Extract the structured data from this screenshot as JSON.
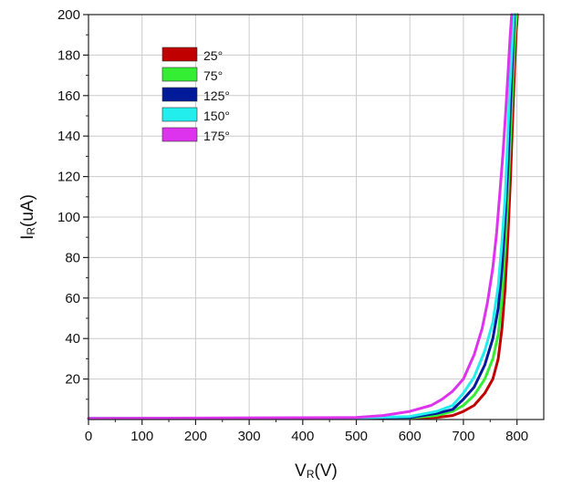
{
  "chart_data": {
    "type": "line",
    "title": "",
    "xlabel": {
      "main": "V",
      "sub": "R",
      "unit": "(V)"
    },
    "ylabel": {
      "main": "I",
      "sub": "R",
      "unit": "(uA)"
    },
    "xlim": [
      0,
      850
    ],
    "ylim": [
      0,
      200
    ],
    "xticks": [
      "0",
      "100",
      "200",
      "300",
      "400",
      "500",
      "600",
      "700",
      "800"
    ],
    "xtick_values": [
      0,
      100,
      200,
      300,
      400,
      500,
      600,
      700,
      800
    ],
    "yticks": [
      "20",
      "40",
      "60",
      "80",
      "100",
      "120",
      "140",
      "160",
      "180",
      "200"
    ],
    "ytick_values": [
      20,
      40,
      60,
      80,
      100,
      120,
      140,
      160,
      180,
      200
    ],
    "grid": true,
    "legend_position": "top-left",
    "series": [
      {
        "name": "25°",
        "color": "#c00000",
        "x": [
          0,
          500,
          600,
          650,
          680,
          700,
          720,
          740,
          755,
          765,
          772,
          778,
          783,
          788,
          792,
          795,
          798,
          801
        ],
        "y": [
          0.5,
          0.5,
          0.6,
          1,
          2,
          4,
          7,
          13,
          20,
          30,
          45,
          65,
          90,
          120,
          150,
          170,
          190,
          200
        ]
      },
      {
        "name": "75°",
        "color": "#33ee33",
        "x": [
          0,
          500,
          600,
          650,
          680,
          700,
          720,
          740,
          755,
          765,
          772,
          778,
          783,
          788,
          791,
          795,
          799
        ],
        "y": [
          0.5,
          0.6,
          0.8,
          2,
          4,
          7,
          12,
          20,
          30,
          42,
          60,
          85,
          110,
          140,
          160,
          185,
          200
        ]
      },
      {
        "name": "125°",
        "color": "#001a99",
        "x": [
          0,
          500,
          600,
          650,
          680,
          700,
          720,
          740,
          755,
          765,
          772,
          778,
          783,
          787,
          791,
          795
        ],
        "y": [
          0.5,
          0.7,
          1,
          3,
          5,
          10,
          16,
          27,
          40,
          55,
          75,
          100,
          125,
          150,
          175,
          200
        ]
      },
      {
        "name": "150°",
        "color": "#22eeee",
        "x": [
          0,
          500,
          600,
          650,
          680,
          700,
          720,
          740,
          755,
          765,
          772,
          778,
          782,
          786,
          790,
          794
        ],
        "y": [
          0.5,
          0.8,
          1.5,
          4,
          7,
          13,
          21,
          34,
          48,
          66,
          88,
          110,
          135,
          160,
          180,
          200
        ]
      },
      {
        "name": "175°",
        "color": "#dd33ee",
        "x": [
          0,
          500,
          550,
          600,
          640,
          660,
          680,
          700,
          720,
          735,
          745,
          755,
          762,
          768,
          774,
          779,
          783,
          787,
          790
        ],
        "y": [
          0.5,
          1,
          2,
          4,
          7,
          10,
          14,
          20,
          32,
          45,
          58,
          75,
          92,
          112,
          132,
          152,
          170,
          188,
          200
        ]
      }
    ]
  }
}
